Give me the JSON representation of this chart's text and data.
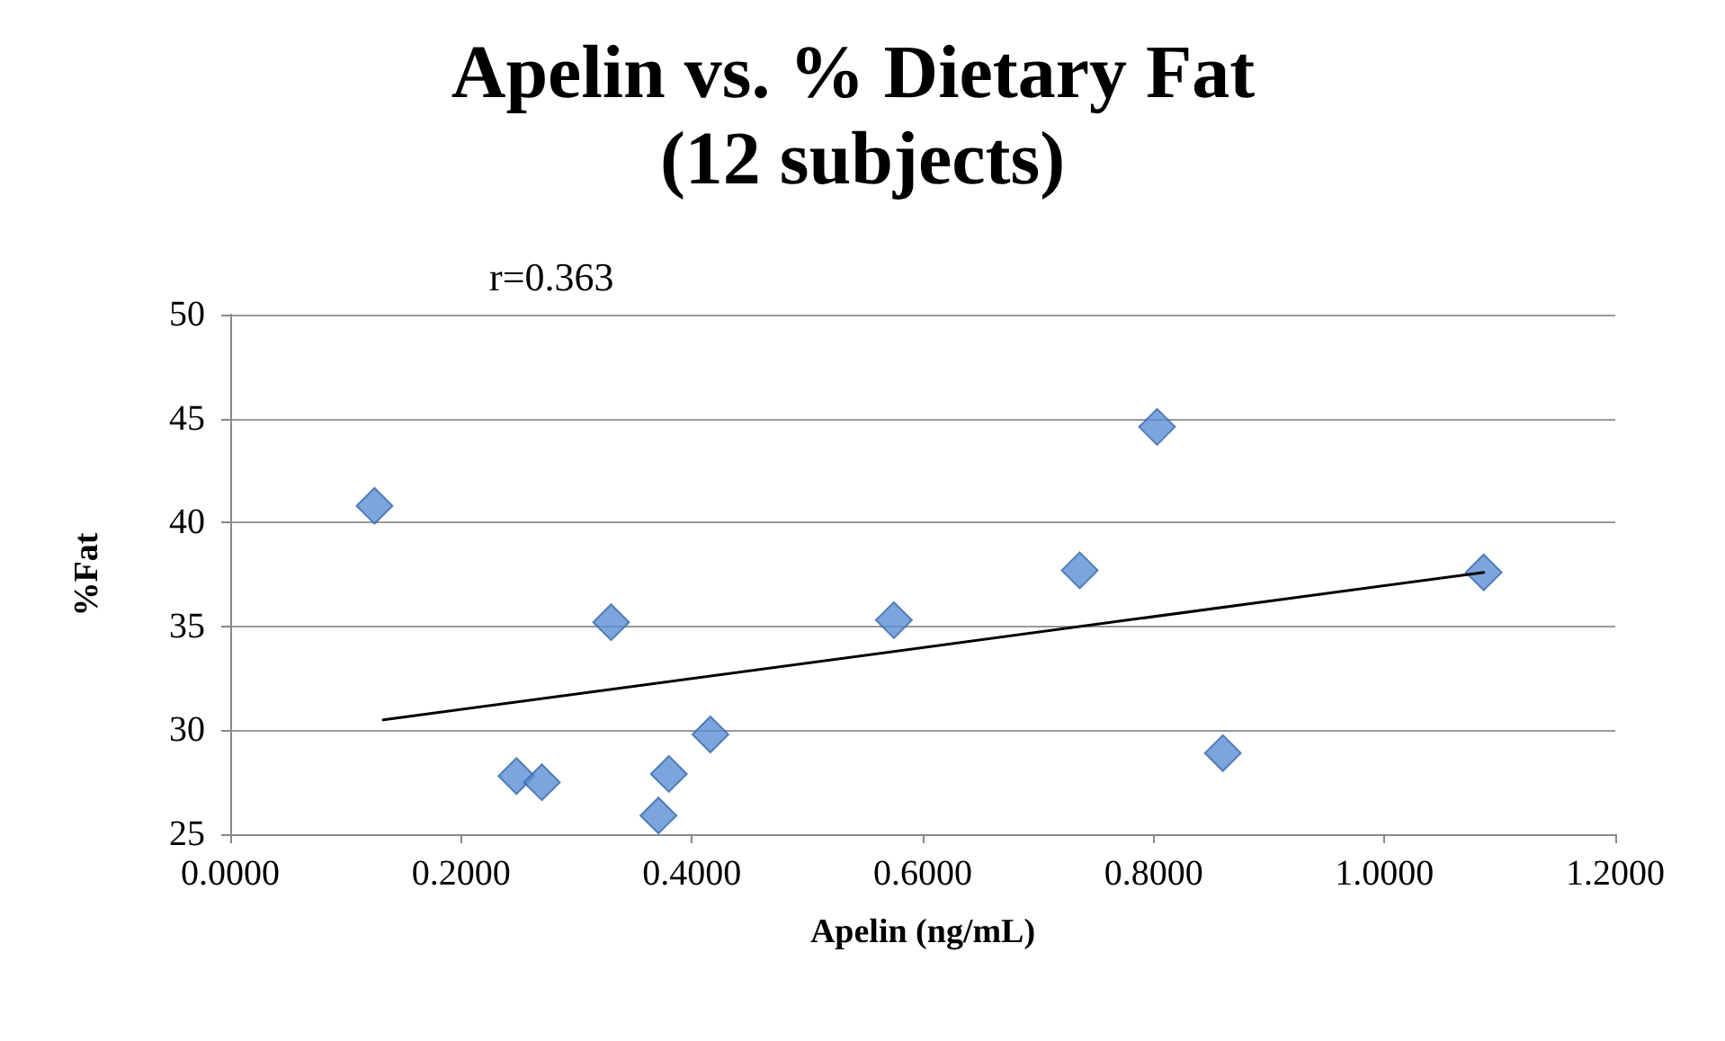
{
  "chart_data": {
    "type": "scatter",
    "title": "Apelin vs. % Dietary Fat (12 subjects)",
    "xlabel": "Apelin (ng/mL)",
    "ylabel": "%Fat",
    "annotations": [
      "r=0.363"
    ],
    "xlim": [
      0,
      1.2
    ],
    "xticks": [
      {
        "value": 0,
        "label": "0.0000"
      },
      {
        "value": 0.2,
        "label": "0.2000"
      },
      {
        "value": 0.4,
        "label": "0.4000"
      },
      {
        "value": 0.6,
        "label": "0.6000"
      },
      {
        "value": 0.8,
        "label": "0.8000"
      },
      {
        "value": 1,
        "label": "1.0000"
      },
      {
        "value": 1.2,
        "label": "1.2000"
      }
    ],
    "ylim": [
      25,
      50
    ],
    "yticks": [
      25,
      30,
      35,
      40,
      45,
      50
    ],
    "grid": "y",
    "series": [
      {
        "marker": "diamond",
        "color": "#5b8fd6",
        "x": [
          0.125,
          0.248,
          0.27,
          0.33,
          0.371,
          0.38,
          0.416,
          0.575,
          0.736,
          0.803,
          0.86,
          1.086
        ],
        "values": [
          40.8,
          27.8,
          27.5,
          35.2,
          25.9,
          27.9,
          29.8,
          35.3,
          37.7,
          44.6,
          28.9,
          37.6
        ]
      },
      {
        "type": "line",
        "marker": "none",
        "color": "#000000",
        "line_style": "solid",
        "x": [
          0.1325,
          1.086
        ],
        "values": [
          30.5,
          37.6
        ]
      }
    ]
  }
}
